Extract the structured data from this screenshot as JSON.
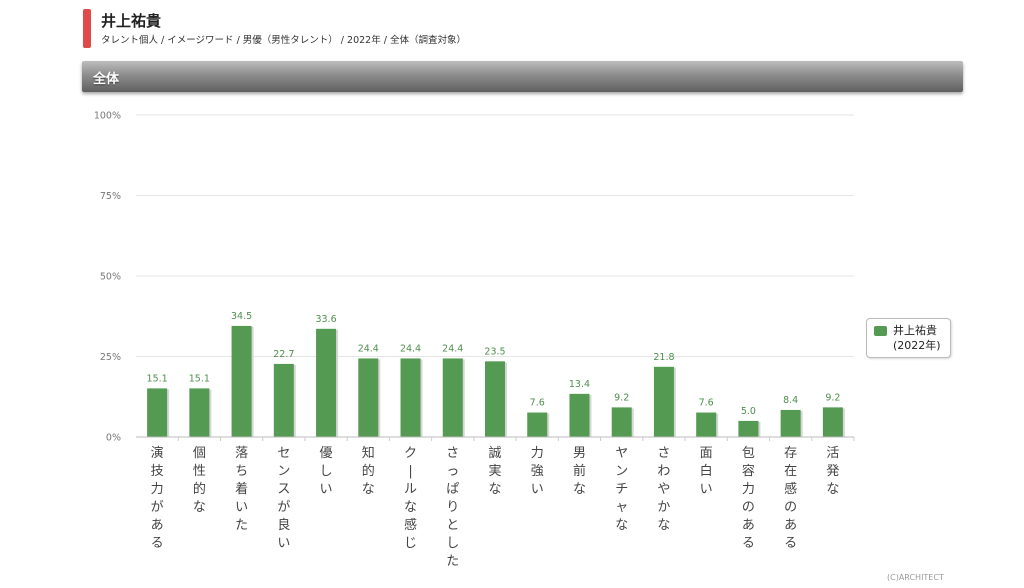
{
  "header": {
    "title": "井上祐貴",
    "subtitle": "タレント個人 / イメージワード / 男優（男性タレント） / 2022年 / 全体（調査対象）"
  },
  "section": {
    "title": "全体"
  },
  "colors": {
    "accent": "#e04a4a",
    "bar": "#559a53",
    "label": "#4e8f4c"
  },
  "legend": {
    "label": "井上祐貴\n(2022年)"
  },
  "footer": {
    "copyright": "(C)ARCHITECT"
  },
  "chart_data": {
    "type": "bar",
    "categories": [
      "演技力がある",
      "個性的な",
      "落ち着いた",
      "センスが良い",
      "優しい",
      "知的な",
      "クールな感じ",
      "さっぱりとした",
      "誠実な",
      "力強い",
      "男前な",
      "ヤンチャな",
      "さわやかな",
      "面白い",
      "包容力のある",
      "存在感のある",
      "活発な"
    ],
    "series": [
      {
        "name": "井上祐貴 (2022年)",
        "values": [
          15.1,
          15.1,
          34.5,
          22.7,
          33.6,
          24.4,
          24.4,
          24.4,
          23.5,
          7.6,
          13.4,
          9.2,
          21.8,
          7.6,
          5.0,
          8.4,
          9.2
        ]
      }
    ],
    "ylim": [
      0,
      100
    ],
    "yticks": [
      0,
      25,
      50,
      75,
      100
    ],
    "ytick_labels": [
      "0%",
      "25%",
      "50%",
      "75%",
      "100%"
    ],
    "value_labels": [
      "15.1",
      "15.1",
      "34.5",
      "22.7",
      "33.6",
      "24.4",
      "24.4",
      "24.4",
      "23.5",
      "7.6",
      "13.4",
      "9.2",
      "21.8",
      "7.6",
      "5.0",
      "8.4",
      "9.2"
    ],
    "grid": true,
    "legend_position": "right"
  }
}
